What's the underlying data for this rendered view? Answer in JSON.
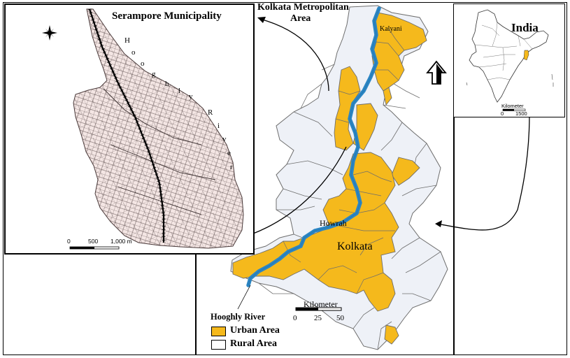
{
  "titles": {
    "serampore": "Serampore Municipality",
    "kma_line1": "Kolkata Metropolitan",
    "kma_line2": "Area",
    "india": "India"
  },
  "places": {
    "kolkata": "Kolkata",
    "howrah": "Howrah",
    "kalyani": "Kalyani"
  },
  "river": {
    "label": "Hooghly River",
    "inset_letters": [
      "H",
      "o",
      "o",
      "g",
      "h",
      "l",
      "y",
      "R",
      "i",
      "v",
      "e",
      "r"
    ]
  },
  "legend": {
    "urban": "Urban Area",
    "rural": "Rural Area"
  },
  "scale_main": {
    "unit": "Kilometer",
    "ticks": [
      "0",
      "25",
      "50"
    ]
  },
  "scale_serampore": {
    "ticks": [
      "0",
      "500",
      "1,000 m"
    ]
  },
  "scale_india": {
    "unit": "Kilometer",
    "ticks": [
      "0",
      "1500"
    ]
  },
  "colors": {
    "urban": "#f5b91c",
    "rural": "#eef1f7",
    "river": "#2b86c4",
    "serampore_fill": "#f4e6e4",
    "boundary": "#6d6d6d"
  },
  "icons": {
    "compass": "compass-star-icon",
    "north": "north-arrow-icon"
  }
}
